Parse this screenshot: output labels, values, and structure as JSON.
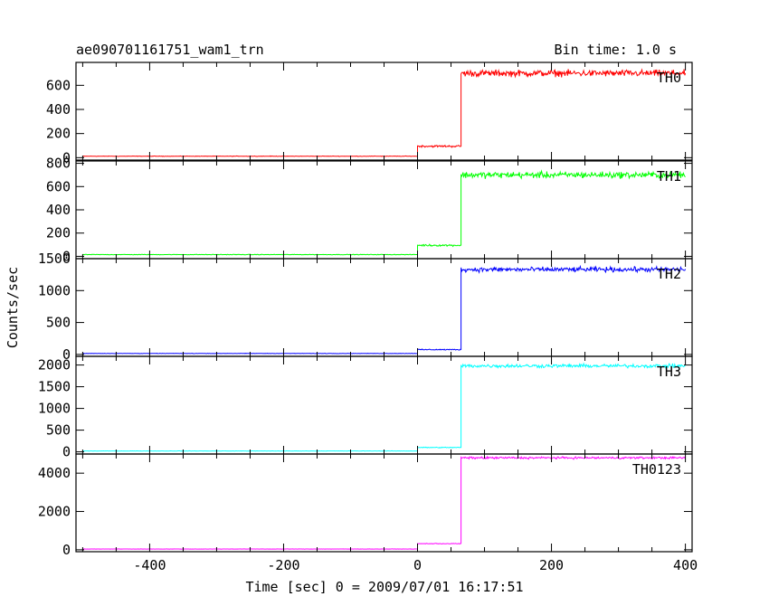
{
  "title_left": "ae090701161751_wam1_trn",
  "title_right": "Bin time: 1.0 s",
  "ylabel": "Counts/sec",
  "xlabel": "Time [sec] 0 = 2009/07/01 16:17:51",
  "chart_data": {
    "type": "line",
    "xlim": [
      -510,
      410
    ],
    "x_ticks": [
      -400,
      -200,
      0,
      200,
      400
    ],
    "panels": [
      {
        "name": "TH0",
        "color": "#ff0000",
        "ylim": [
          -20,
          790
        ],
        "y_ticks": [
          0,
          200,
          400,
          600
        ],
        "segments": [
          {
            "x_start": -500,
            "x_end": 0,
            "level": 12,
            "noise": 3
          },
          {
            "x_start": 0,
            "x_end": 65,
            "level": 95,
            "noise": 12
          },
          {
            "x_start": 65,
            "x_end": 400,
            "level": 700,
            "noise": 40
          }
        ]
      },
      {
        "name": "TH1",
        "color": "#00ff00",
        "ylim": [
          -20,
          820
        ],
        "y_ticks": [
          0,
          200,
          400,
          600,
          800
        ],
        "segments": [
          {
            "x_start": -500,
            "x_end": 0,
            "level": 15,
            "noise": 3
          },
          {
            "x_start": 0,
            "x_end": 65,
            "level": 95,
            "noise": 12
          },
          {
            "x_start": 65,
            "x_end": 400,
            "level": 700,
            "noise": 40
          }
        ]
      },
      {
        "name": "TH2",
        "color": "#0000ff",
        "ylim": [
          -30,
          1500
        ],
        "y_ticks": [
          0,
          500,
          1000,
          1500
        ],
        "segments": [
          {
            "x_start": -500,
            "x_end": 0,
            "level": 15,
            "noise": 4
          },
          {
            "x_start": 0,
            "x_end": 65,
            "level": 75,
            "noise": 12
          },
          {
            "x_start": 65,
            "x_end": 400,
            "level": 1330,
            "noise": 55
          }
        ]
      },
      {
        "name": "TH3",
        "color": "#00ffff",
        "ylim": [
          -50,
          2200
        ],
        "y_ticks": [
          0,
          500,
          1000,
          1500,
          2000
        ],
        "segments": [
          {
            "x_start": -500,
            "x_end": 0,
            "level": 20,
            "noise": 5
          },
          {
            "x_start": 0,
            "x_end": 65,
            "level": 100,
            "noise": 15
          },
          {
            "x_start": 65,
            "x_end": 400,
            "level": 1980,
            "noise": 60
          }
        ]
      },
      {
        "name": "TH0123",
        "color": "#ff00ff",
        "ylim": [
          -100,
          5000
        ],
        "y_ticks": [
          0,
          2000,
          4000
        ],
        "segments": [
          {
            "x_start": -500,
            "x_end": 0,
            "level": 40,
            "noise": 8
          },
          {
            "x_start": 0,
            "x_end": 65,
            "level": 320,
            "noise": 25
          },
          {
            "x_start": 65,
            "x_end": 400,
            "level": 4800,
            "noise": 80
          }
        ]
      }
    ]
  }
}
